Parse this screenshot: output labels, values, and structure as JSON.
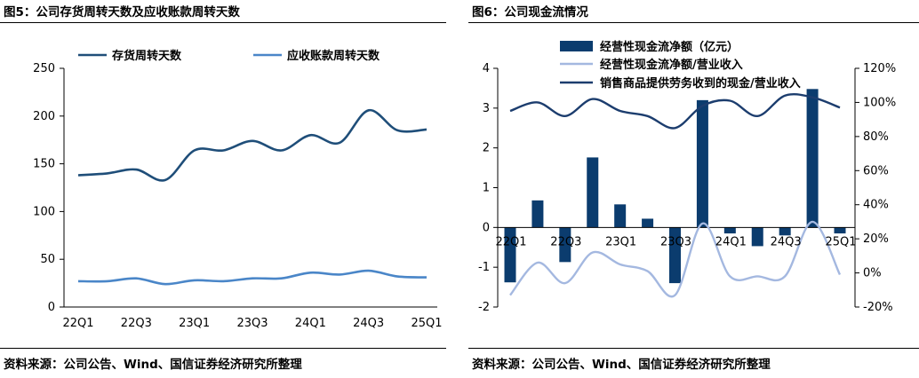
{
  "left": {
    "figure_title": "图5：公司存货周转天数及应收账款周转天数",
    "source": "资料来源：公司公告、Wind、国信证券经济研究所整理"
  },
  "right": {
    "figure_title": "图6：公司现金流情况",
    "source": "资料来源：公司公告、Wind、国信证券经济研究所整理"
  },
  "colors": {
    "inventory_line": "#1f4e79",
    "receivable_line": "#4a86c8",
    "bar": "#0b3c6e",
    "ratio_line": "#a4b8e0",
    "sales_cash_line": "#1c3d6e",
    "axis": "#000000",
    "background": "#ffffff"
  },
  "chart_data": [
    {
      "id": "turnover-days",
      "type": "line",
      "title": "",
      "xlabel": "",
      "ylabel": "",
      "x_tick_labels": [
        "22Q1",
        "22Q3",
        "23Q1",
        "23Q3",
        "24Q1",
        "24Q3",
        "25Q1"
      ],
      "categories": [
        "22Q1",
        "22Q2",
        "22Q3",
        "22Q4",
        "23Q1",
        "23Q2",
        "23Q3",
        "23Q4",
        "24Q1",
        "24Q2",
        "24Q3",
        "24Q4",
        "25Q1"
      ],
      "series": [
        {
          "name": "存货周转天数",
          "values": [
            138,
            140,
            144,
            133,
            164,
            164,
            174,
            164,
            180,
            172,
            206,
            185,
            186
          ]
        },
        {
          "name": "应收账款周转天数",
          "values": [
            27,
            27,
            30,
            24,
            28,
            27,
            30,
            30,
            36,
            34,
            38,
            32,
            31
          ]
        }
      ],
      "ylim": [
        0,
        250
      ],
      "y_ticks": [
        0,
        50,
        100,
        150,
        200,
        250
      ],
      "legend_position": "top",
      "grid": false
    },
    {
      "id": "cash-flow",
      "type": "bar",
      "title": "",
      "xlabel": "",
      "ylabel": "",
      "x_tick_labels": [
        "22Q1",
        "22Q3",
        "23Q1",
        "23Q3",
        "24Q1",
        "24Q3",
        "25Q1"
      ],
      "categories": [
        "22Q1",
        "22Q2",
        "22Q3",
        "22Q4",
        "23Q1",
        "23Q2",
        "23Q3",
        "23Q4",
        "24Q1",
        "24Q2",
        "24Q3",
        "24Q4",
        "25Q1"
      ],
      "series": [
        {
          "name": "经营性现金流净额（亿元）",
          "type": "bar",
          "axis": "left",
          "values": [
            -1.38,
            0.68,
            -0.87,
            1.76,
            0.58,
            0.22,
            -1.4,
            3.2,
            -0.15,
            -0.47,
            -0.2,
            3.48,
            -0.15
          ]
        },
        {
          "name": "经营性现金流净额/营业收入",
          "type": "line",
          "axis": "right",
          "values": [
            -13,
            6,
            -6,
            12,
            5,
            1,
            -13,
            29,
            -2,
            -2,
            -2,
            30,
            -1
          ]
        },
        {
          "name": "销售商品提供劳务收到的现金/营业收入",
          "type": "line",
          "axis": "right",
          "values": [
            95,
            100,
            92,
            102,
            95,
            92,
            85,
            98,
            101,
            92,
            104,
            103,
            97
          ]
        }
      ],
      "ylim_left": [
        -2,
        4
      ],
      "y_ticks_left": [
        -2,
        -1,
        0,
        1,
        2,
        3,
        4
      ],
      "ylim_right": [
        -20,
        120
      ],
      "y_ticks_right": [
        "-20%",
        "0%",
        "20%",
        "40%",
        "60%",
        "80%",
        "100%",
        "120%"
      ],
      "legend_position": "top",
      "grid": false
    }
  ]
}
